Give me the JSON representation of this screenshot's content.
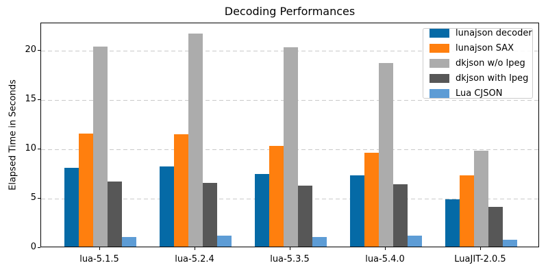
{
  "chart_data": {
    "type": "bar",
    "title": "Decoding Performances",
    "xlabel": "",
    "ylabel": "Elapsed Time in Seconds",
    "categories": [
      "lua-5.1.5",
      "lua-5.2.4",
      "lua-5.3.5",
      "lua-5.4.0",
      "LuaJIT-2.0.5"
    ],
    "series": [
      {
        "name": "lunajson decoder",
        "color": "#056aa6",
        "values": [
          8.0,
          8.1,
          7.4,
          7.2,
          4.8
        ]
      },
      {
        "name": "lunajson SAX",
        "color": "#ff7f0e",
        "values": [
          11.5,
          11.4,
          10.2,
          9.5,
          7.2
        ]
      },
      {
        "name": "dkjson w/o lpeg",
        "color": "#acacac",
        "values": [
          20.3,
          21.6,
          20.2,
          18.6,
          9.7
        ]
      },
      {
        "name": "dkjson with lpeg",
        "color": "#575757",
        "values": [
          6.6,
          6.5,
          6.2,
          6.3,
          4.0
        ]
      },
      {
        "name": "Lua CJSON",
        "color": "#5d9cd5",
        "values": [
          1.0,
          1.1,
          1.0,
          1.1,
          0.7
        ]
      }
    ],
    "yticks": [
      0,
      5,
      10,
      15,
      20
    ],
    "ylim": [
      0,
      22.8
    ],
    "grid": "horizontal-dashed",
    "legend_position": "upper-right",
    "colors": {
      "axis": "#000000",
      "gridline": "#c9c9c9",
      "legend_border": "#cccccc",
      "background": "#ffffff"
    }
  }
}
